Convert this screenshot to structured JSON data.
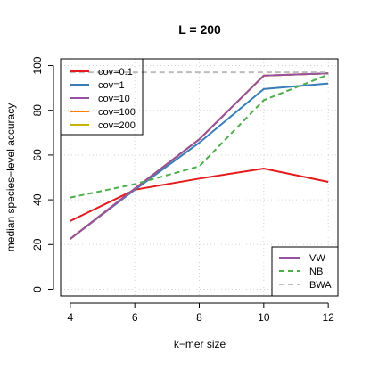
{
  "chart_data": {
    "type": "line",
    "title": "L = 200",
    "xlabel": "k−mer size",
    "ylabel": "median species−level accuracy",
    "x": [
      4,
      6,
      8,
      10,
      12
    ],
    "xlim": [
      3.7,
      12.3
    ],
    "ylim": [
      -3,
      103
    ],
    "xticks": [
      4,
      6,
      8,
      10,
      12
    ],
    "yticks": [
      0,
      20,
      40,
      60,
      80,
      100
    ],
    "grid": true,
    "series": [
      {
        "name": "cov=0.1",
        "method": "VW",
        "color": "#e41a1c",
        "dash": "solid",
        "values": [
          30.5,
          44.5,
          49.5,
          54,
          48
        ]
      },
      {
        "name": "cov=1",
        "method": "VW",
        "color": "#377eb8",
        "dash": "solid",
        "values": [
          22.5,
          44.5,
          65.5,
          89.5,
          92
        ]
      },
      {
        "name": "cov=10",
        "method": "VW",
        "color": "#984ea3",
        "dash": "solid",
        "values": [
          22.5,
          45,
          67,
          95.5,
          96.5
        ]
      },
      {
        "name": "cov=100",
        "method": "VW",
        "color": "#ff7f00",
        "dash": "solid",
        "values": [
          22.5,
          45,
          67,
          95.5,
          96.5
        ]
      },
      {
        "name": "cov=200",
        "method": "VW",
        "color": "#c8b400",
        "dash": "solid",
        "values": [
          22.5,
          45,
          67,
          95.5,
          96.5
        ]
      },
      {
        "name": "cov=10",
        "method": "VW",
        "color": "#984ea3",
        "dash": "solid",
        "values": [
          22.5,
          45,
          67,
          95.5,
          96.5
        ]
      },
      {
        "name": "NB",
        "method": "NB",
        "color": "#4daf4a",
        "dash": "dashed",
        "values": [
          41,
          47,
          55,
          84.5,
          96
        ]
      },
      {
        "name": "BWA",
        "method": "BWA",
        "color": "#bdbdbd",
        "dash": "dashed",
        "values": [
          97,
          97,
          97,
          97,
          97
        ]
      }
    ],
    "legend_cov": {
      "placement": "top-left",
      "entries": [
        {
          "label": "cov=0.1",
          "color": "#e41a1c"
        },
        {
          "label": "cov=1",
          "color": "#377eb8"
        },
        {
          "label": "cov=10",
          "color": "#984ea3"
        },
        {
          "label": "cov=100",
          "color": "#ff7f00"
        },
        {
          "label": "cov=200",
          "color": "#c8b400"
        }
      ]
    },
    "legend_method": {
      "placement": "bottom-right",
      "entries": [
        {
          "label": "VW",
          "color": "#984ea3",
          "dash": "solid"
        },
        {
          "label": "NB",
          "color": "#4daf4a",
          "dash": "dashed"
        },
        {
          "label": "BWA",
          "color": "#bdbdbd",
          "dash": "dashed"
        }
      ]
    }
  }
}
